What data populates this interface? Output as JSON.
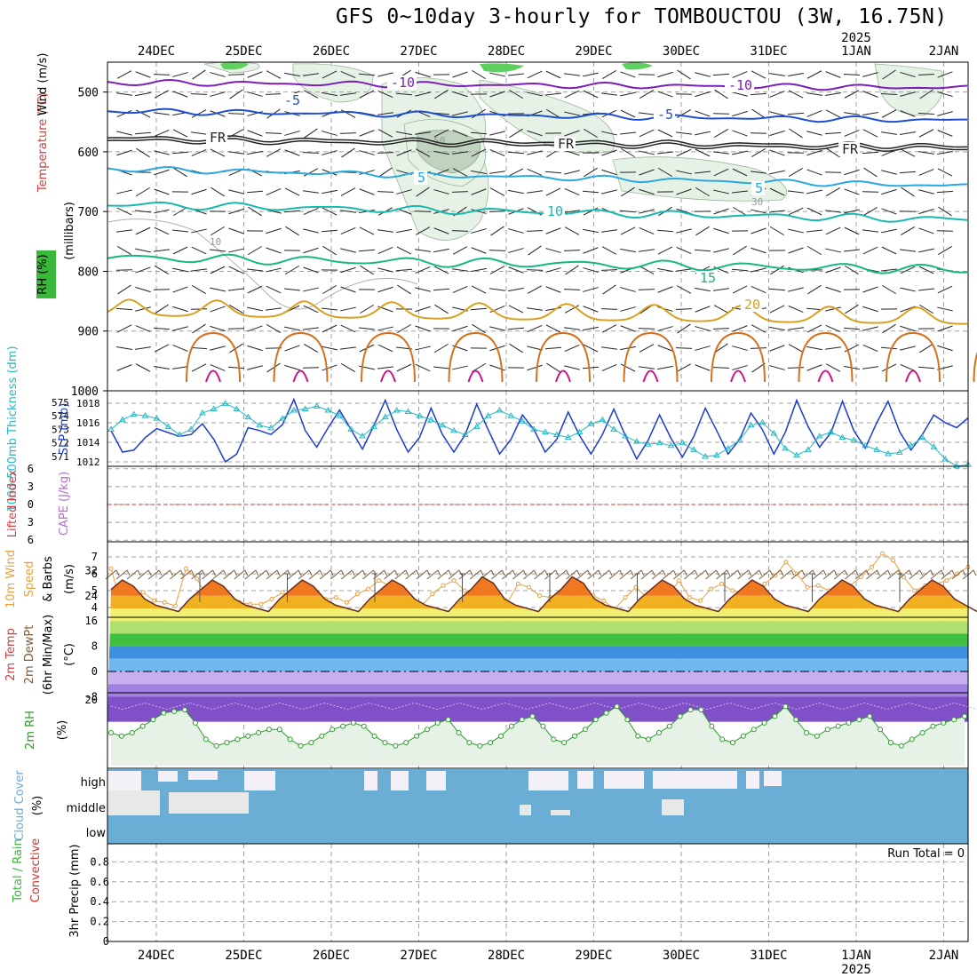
{
  "title": "GFS 0~10day 3-hourly for TOMBOUCTOU (3W, 16.75N)",
  "dates": [
    "24DEC",
    "25DEC",
    "26DEC",
    "27DEC",
    "28DEC",
    "29DEC",
    "30DEC",
    "31DEC",
    "1JAN",
    "2JAN"
  ],
  "year_label": "2025",
  "colors": {
    "frame": "#000000",
    "grid": "#a0a0a0",
    "temp_purple": "#7a1fb8",
    "temp_blue": "#1f4fd1",
    "temp_cyan": "#2aa8e0",
    "temp_teal": "#19b8b0",
    "temp_green": "#15b880",
    "temp_orange": "#d9a020",
    "temp_dark_orange": "#d67018",
    "temp_magenta": "#d0108a",
    "slp": "#1a3ccf",
    "thickness": "#24b8c4",
    "wind10": "#e8a040",
    "rh2m": "#2e9a2e",
    "cloud": "#6aaed6",
    "cape_zero": "#d83030"
  },
  "chart_data": [
    {
      "type": "contour",
      "panel": "upper-air",
      "ylabel_wind": "Wind (m/s)",
      "ylabel_temp": "Temperature (°C)",
      "ylabel_rh": "RH (%)",
      "ylabel_units": "(millibars)",
      "y_ticks": [
        "500",
        "600",
        "700",
        "800",
        "900",
        "1000"
      ],
      "ylim": [
        1000,
        450
      ],
      "isotherm_labels": [
        "-10",
        "-10",
        "-5",
        "-5",
        "FR",
        "FR",
        "FR",
        "5",
        "5",
        "10",
        "15",
        "20"
      ],
      "rh_labels": [
        "10",
        "30",
        "50"
      ]
    },
    {
      "type": "line",
      "panel": "slp-thickness",
      "ylabel_left": "1000-500mb Thickness (dm)",
      "ylabel_right": "SLP (mb)",
      "left_ticks": [
        "575",
        "574",
        "573",
        "572",
        "571"
      ],
      "right_ticks": [
        "1018",
        "1016",
        "1014",
        "1012"
      ],
      "series": [
        {
          "name": "SLP",
          "values": [
            1015.2,
            1013.0,
            1013.2,
            1014.5,
            1015.4,
            1015.0,
            1014.6,
            1014.8,
            1015.9,
            1014.3,
            1012.0,
            1012.8,
            1015.5,
            1015.2,
            1014.8,
            1015.8,
            1018.4,
            1015.2,
            1013.5,
            1015.5,
            1017.3,
            1015.3,
            1013.3,
            1015.7,
            1018.3,
            1015.3,
            1013.0,
            1014.5,
            1017.5,
            1014.8,
            1013.0,
            1014.8,
            1017.9,
            1015.3,
            1012.8,
            1014.3,
            1016.8,
            1015.3,
            1013.0,
            1014.3,
            1017.1,
            1014.7,
            1012.8,
            1014.8,
            1017.4,
            1014.7,
            1012.3,
            1014.2,
            1016.8,
            1014.4,
            1012.5,
            1014.6,
            1017.5,
            1015.2,
            1012.8,
            1014.3,
            1017.0,
            1015.3,
            1012.8,
            1015.0,
            1018.3,
            1015.6,
            1013.5,
            1015.0,
            1018.2,
            1015.2,
            1013.4,
            1016.0,
            1018.2,
            1015.1,
            1013.2,
            1014.8,
            1016.8,
            1016.0,
            1015.5,
            1016.5
          ]
        },
        {
          "name": "Thickness",
          "values": [
            573.0,
            573.7,
            574.1,
            574.0,
            573.8,
            573.2,
            572.6,
            573.0,
            574.2,
            574.5,
            574.9,
            574.5,
            573.9,
            573.3,
            573.1,
            573.8,
            574.4,
            574.5,
            574.7,
            574.4,
            574.0,
            573.0,
            572.5,
            573.2,
            573.9,
            574.4,
            574.3,
            574.0,
            573.7,
            573.3,
            572.9,
            572.6,
            573.2,
            574.0,
            574.4,
            574.0,
            573.6,
            573.0,
            572.8,
            572.6,
            572.4,
            572.8,
            573.4,
            573.7,
            573.0,
            572.5,
            572.1,
            571.9,
            572.0,
            571.8,
            572.0,
            571.5,
            571.0,
            571.1,
            571.6,
            572.2,
            573.3,
            573.5,
            572.7,
            571.6,
            571.1,
            571.5,
            572.5,
            572.8,
            572.4,
            572.2,
            571.8,
            571.5,
            571.2,
            571.3,
            571.8,
            572.4,
            571.7,
            570.8,
            570.3,
            570.4
          ]
        }
      ]
    },
    {
      "type": "line",
      "panel": "cape-li",
      "ylabel_left": "Lifted Index",
      "ylabel_right": "CAPE (J/kg)",
      "y_ticks": [
        "-6",
        "-3",
        "0",
        "3",
        "6"
      ],
      "ylim": [
        6,
        -6
      ],
      "series": [
        {
          "name": "Lifted Index",
          "values": []
        }
      ]
    },
    {
      "type": "line",
      "panel": "wind10m",
      "ylabel": "10m Wind Speed & Barbs (m/s)",
      "ylabel_l1": "10m Wind",
      "ylabel_l2": "Speed",
      "ylabel_l3": "& Barbs",
      "units": "(m/s)",
      "y_ticks": [
        "4",
        "5",
        "6",
        "7"
      ],
      "ylim": [
        3.5,
        7.6
      ],
      "series": [
        {
          "name": "10m Wind Speed",
          "values": [
            6.3,
            4.1,
            4.6,
            4.9,
            4.4,
            4.3,
            4.1,
            6.3,
            5.7,
            4.6,
            4.5,
            4.4,
            4.3,
            4.2,
            4.2,
            4.5,
            4.9,
            4.4,
            3.7,
            4.2,
            4.5,
            4.6,
            4.3,
            4.8,
            5.1,
            5.6,
            5.3,
            4.0,
            3.9,
            4.1,
            4.8,
            5.3,
            5.6,
            5.0,
            4.6,
            4.9,
            4.5,
            4.3,
            5.4,
            5.2,
            4.7,
            4.6,
            4.3,
            4.8,
            5.0,
            4.7,
            4.4,
            3.9,
            4.6,
            5.2,
            4.6,
            4.3,
            4.7,
            5.6,
            4.6,
            4.4,
            5.1,
            5.4,
            5.0,
            4.9,
            4.8,
            5.4,
            5.9,
            6.7,
            6.0,
            5.2,
            5.3,
            5.0,
            5.0,
            5.3,
            5.8,
            6.4,
            7.2,
            6.8,
            5.8,
            5.0,
            5.3,
            5.4,
            5.6,
            6.0,
            6.4
          ]
        }
      ]
    },
    {
      "type": "area",
      "panel": "temp2m",
      "ylabel_l1": "2m Temp",
      "ylabel_l2": "2m DewPt",
      "ylabel_l3": "(6hr Min/Max)",
      "units": "(°C)",
      "y_ticks": [
        "32",
        "24",
        "16",
        "8",
        "0",
        "-8"
      ],
      "ylim": [
        -16,
        35
      ],
      "series": [
        {
          "name": "2m Temp",
          "values": [
            26,
            29,
            27,
            23,
            21,
            20,
            19,
            23,
            26,
            29,
            27,
            23,
            21,
            20,
            19,
            23,
            26,
            29,
            27,
            23,
            21,
            20,
            19,
            23,
            26,
            29,
            27,
            23,
            21,
            20,
            19,
            23,
            26,
            30,
            28,
            23,
            21,
            20,
            19,
            23,
            26,
            30,
            28,
            23,
            21,
            20,
            19,
            23,
            26,
            29,
            27,
            23,
            21,
            20,
            19,
            23,
            26,
            29,
            27,
            23,
            21,
            20,
            19,
            23,
            26,
            29,
            27,
            23,
            21,
            20,
            19,
            23,
            26,
            29,
            27,
            23,
            21,
            19
          ]
        },
        {
          "name": "2m DewPt",
          "values": [
            -11,
            -12,
            -11,
            -10,
            -11,
            -12,
            -11,
            -10,
            -11,
            -12,
            -11,
            -10,
            -11,
            -12,
            -11,
            -10,
            -11,
            -12,
            -11,
            -10,
            -11,
            -12,
            -11,
            -10,
            -11,
            -12,
            -11,
            -10,
            -11,
            -12,
            -11,
            -10,
            -11,
            -12,
            -11,
            -10,
            -11,
            -12,
            -11,
            -10,
            -11,
            -12,
            -11,
            -10,
            -11,
            -12,
            -11,
            -10,
            -11,
            -12,
            -11,
            -10,
            -11,
            -12,
            -11,
            -10,
            -11,
            -12,
            -11,
            -10,
            -11,
            -12,
            -11,
            -10,
            -11,
            -12,
            -11,
            -10,
            -11,
            -12,
            -11,
            -10,
            -11,
            -12,
            -11,
            -10,
            -11,
            -12
          ]
        }
      ]
    },
    {
      "type": "line",
      "panel": "rh2m",
      "ylabel": "2m RH",
      "units": "(%)",
      "y_ticks": [
        "20"
      ],
      "ylim": [
        0,
        22
      ],
      "series": [
        {
          "name": "2m RH",
          "values": [
            10,
            9,
            10,
            12,
            14,
            16,
            16.5,
            17,
            13,
            8,
            6,
            7,
            8,
            9,
            10,
            11,
            11,
            8,
            6,
            7,
            9,
            11,
            12,
            13,
            12,
            9,
            7,
            6,
            7,
            9,
            11,
            13,
            14,
            10,
            7,
            6,
            7,
            9,
            12,
            14,
            15,
            12,
            8,
            7,
            9,
            11,
            14,
            16,
            18,
            14,
            9,
            8,
            10,
            12,
            15,
            17,
            17,
            12,
            8,
            7,
            9,
            11,
            13,
            15,
            18,
            14,
            10,
            9,
            11,
            12,
            13,
            14,
            15,
            11,
            7,
            6,
            8,
            10,
            12,
            13,
            14,
            15
          ]
        }
      ]
    },
    {
      "type": "heatmap",
      "panel": "cloud",
      "ylabel": "Cloud Cover",
      "units": "(%)",
      "y_ticks": [
        "high",
        "middle",
        "low"
      ]
    },
    {
      "type": "bar",
      "panel": "precip",
      "ylabel_l1": "Total / Rain",
      "ylabel_l2": "Convective",
      "ylabel_units": "3hr Precip (mm)",
      "y_ticks": [
        "0.8",
        "0.6",
        "0.4",
        "0.2",
        "0"
      ],
      "ylim": [
        0,
        0.95
      ],
      "run_total_label": "Run Total = 0",
      "values": []
    }
  ]
}
